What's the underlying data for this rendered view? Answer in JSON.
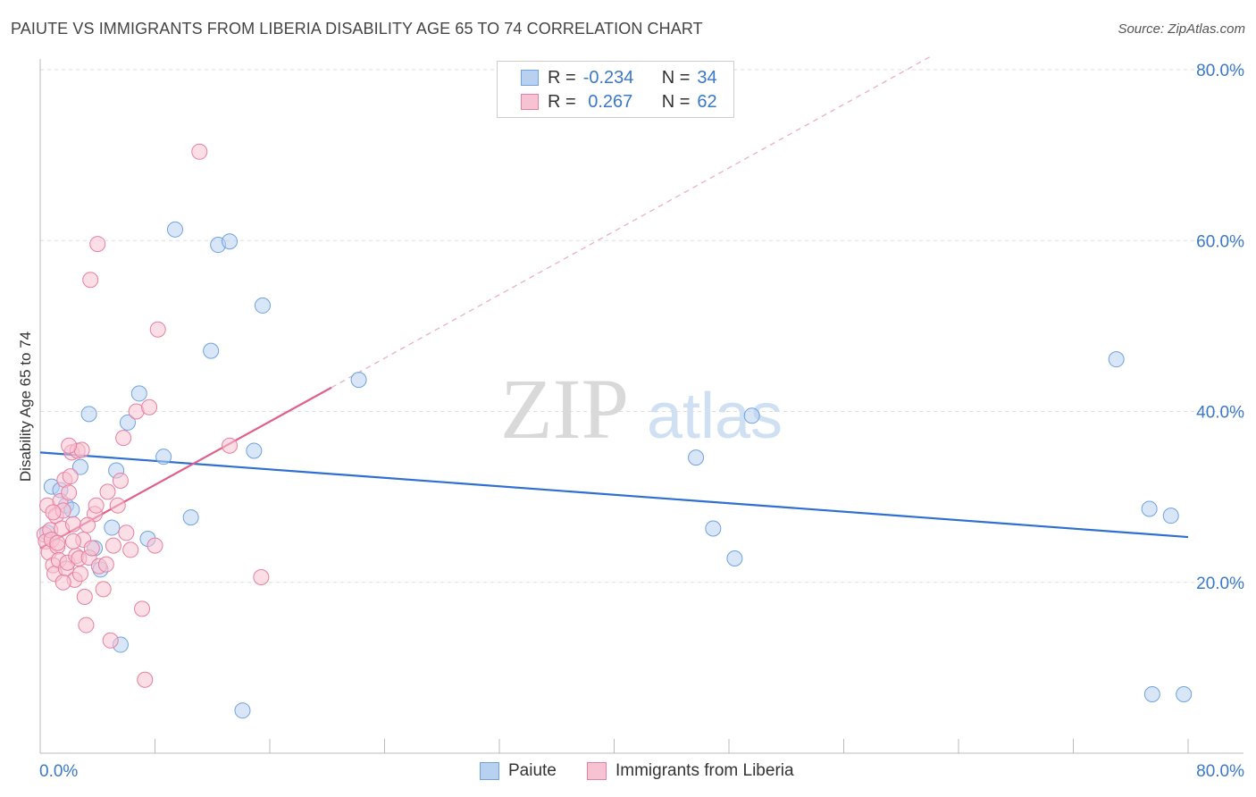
{
  "title": "PAIUTE VS IMMIGRANTS FROM LIBERIA DISABILITY AGE 65 TO 74 CORRELATION CHART",
  "source": "Source: ZipAtlas.com",
  "watermark": {
    "zip": "ZIP",
    "atlas": "atlas"
  },
  "legend": {
    "rows": [
      {
        "r_label": "R =",
        "r_value": "-0.234",
        "n_label": "N =",
        "n_value": "34"
      },
      {
        "r_label": "R =",
        "r_value": " 0.267",
        "n_label": "N =",
        "n_value": "62"
      }
    ]
  },
  "chart_data": {
    "type": "scatter",
    "title": "PAIUTE VS IMMIGRANTS FROM LIBERIA DISABILITY AGE 65 TO 74 CORRELATION CHART",
    "xlabel": "",
    "ylabel": "Disability Age 65 to 74",
    "xlim": [
      0,
      80
    ],
    "ylim": [
      0,
      80
    ],
    "x_tick_labels": [
      "0.0%",
      "80.0%"
    ],
    "y_tick_labels": [
      "20.0%",
      "40.0%",
      "60.0%",
      "80.0%"
    ],
    "y_ticks": [
      20,
      40,
      60,
      80
    ],
    "grid": true,
    "series": [
      {
        "name": "Paiute",
        "color": "#6fa3e0",
        "fill": "#b8d1f0",
        "points": [
          [
            0.5,
            25.8
          ],
          [
            0.8,
            31.2
          ],
          [
            1.4,
            30.8
          ],
          [
            1.8,
            29.0
          ],
          [
            2.2,
            28.5
          ],
          [
            2.8,
            33.5
          ],
          [
            3.4,
            39.7
          ],
          [
            3.8,
            24.0
          ],
          [
            4.2,
            21.5
          ],
          [
            5.0,
            26.4
          ],
          [
            5.3,
            33.1
          ],
          [
            5.6,
            12.7
          ],
          [
            6.1,
            38.7
          ],
          [
            6.9,
            42.1
          ],
          [
            7.5,
            25.1
          ],
          [
            8.6,
            34.7
          ],
          [
            9.4,
            61.3
          ],
          [
            10.5,
            27.6
          ],
          [
            11.9,
            47.1
          ],
          [
            12.4,
            59.5
          ],
          [
            13.2,
            59.9
          ],
          [
            14.1,
            5.0
          ],
          [
            14.9,
            35.4
          ],
          [
            15.5,
            52.4
          ],
          [
            22.2,
            43.7
          ],
          [
            45.7,
            34.6
          ],
          [
            46.9,
            26.3
          ],
          [
            48.4,
            22.8
          ],
          [
            49.6,
            39.5
          ],
          [
            75.0,
            46.1
          ],
          [
            77.3,
            28.6
          ],
          [
            78.8,
            27.8
          ],
          [
            77.5,
            6.9
          ],
          [
            79.7,
            6.9
          ]
        ],
        "trend": {
          "x": [
            0,
            80
          ],
          "y": [
            35.2,
            25.3
          ]
        }
      },
      {
        "name": "Immigrants from Liberia",
        "color": "#e87fa0",
        "fill": "#f7c2d2",
        "points": [
          [
            0.3,
            25.6
          ],
          [
            0.4,
            24.8
          ],
          [
            0.5,
            29.0
          ],
          [
            0.6,
            23.5
          ],
          [
            0.7,
            26.1
          ],
          [
            0.8,
            25.0
          ],
          [
            0.9,
            22.0
          ],
          [
            1.0,
            21.0
          ],
          [
            1.1,
            27.8
          ],
          [
            1.2,
            24.2
          ],
          [
            1.3,
            22.6
          ],
          [
            1.4,
            29.5
          ],
          [
            1.5,
            26.3
          ],
          [
            1.6,
            28.4
          ],
          [
            1.7,
            32.0
          ],
          [
            1.8,
            21.6
          ],
          [
            1.9,
            22.3
          ],
          [
            2.0,
            30.5
          ],
          [
            2.1,
            32.4
          ],
          [
            2.2,
            35.2
          ],
          [
            2.3,
            26.8
          ],
          [
            2.4,
            20.3
          ],
          [
            2.5,
            23.1
          ],
          [
            2.6,
            35.4
          ],
          [
            2.7,
            22.8
          ],
          [
            2.8,
            21.0
          ],
          [
            2.9,
            35.5
          ],
          [
            3.0,
            25.0
          ],
          [
            3.1,
            18.3
          ],
          [
            3.2,
            15.0
          ],
          [
            3.4,
            22.9
          ],
          [
            3.6,
            24.0
          ],
          [
            3.8,
            28.0
          ],
          [
            3.9,
            29.0
          ],
          [
            4.1,
            21.9
          ],
          [
            4.4,
            19.2
          ],
          [
            4.7,
            30.6
          ],
          [
            4.9,
            13.2
          ],
          [
            5.1,
            24.3
          ],
          [
            5.4,
            29.0
          ],
          [
            5.6,
            31.9
          ],
          [
            5.8,
            36.9
          ],
          [
            6.3,
            23.8
          ],
          [
            6.7,
            40.0
          ],
          [
            7.1,
            16.9
          ],
          [
            7.6,
            40.5
          ],
          [
            7.3,
            8.6
          ],
          [
            8.0,
            24.3
          ],
          [
            8.2,
            49.6
          ],
          [
            6.0,
            25.8
          ],
          [
            4.0,
            59.6
          ],
          [
            3.5,
            55.4
          ],
          [
            11.1,
            70.4
          ],
          [
            13.2,
            36.0
          ],
          [
            15.4,
            20.6
          ],
          [
            2.0,
            36.0
          ],
          [
            1.2,
            24.6
          ],
          [
            0.9,
            28.2
          ],
          [
            1.6,
            20.0
          ],
          [
            2.3,
            24.8
          ],
          [
            3.3,
            26.7
          ],
          [
            4.6,
            22.1
          ]
        ],
        "trend": {
          "x": [
            0,
            20.3
          ],
          "y": [
            24.0,
            42.8
          ]
        },
        "trend_extended": {
          "x": [
            20.3,
            62
          ],
          "y": [
            42.8,
            81.5
          ]
        }
      }
    ]
  }
}
